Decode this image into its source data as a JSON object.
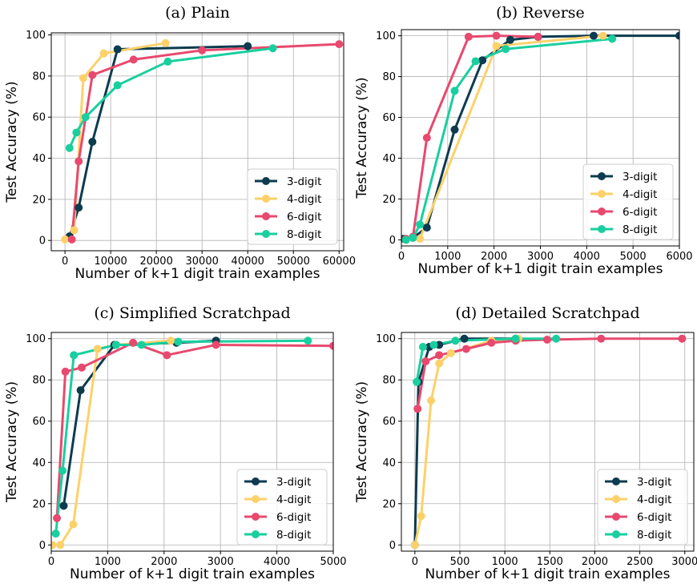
{
  "chart_data": [
    {
      "type": "line",
      "title": "(a) Plain",
      "xlabel": "Number of k+1 digit train examples",
      "ylabel": "Test Accuracy (%)",
      "xlim": [
        -3000,
        61000
      ],
      "ylim": [
        -5,
        101
      ],
      "xticks": [
        0,
        10000,
        20000,
        30000,
        40000,
        50000,
        60000
      ],
      "xtick_labels": [
        "0",
        "10000",
        "20000",
        "30000",
        "40000",
        "50000",
        "60000"
      ],
      "yticks": [
        0,
        20,
        40,
        60,
        80,
        100
      ],
      "ytick_labels": [
        "0",
        "20",
        "40",
        "60",
        "80",
        "100"
      ],
      "grid": true,
      "legend_position": "lower-right",
      "series": [
        {
          "name": "3-digit",
          "color": "#0d3b4f",
          "x": [
            1000,
            3000,
            6000,
            11500,
            40000
          ],
          "y": [
            2,
            16,
            48,
            93,
            94.5
          ]
        },
        {
          "name": "4-digit",
          "color": "#fdd16a",
          "x": [
            0,
            2000,
            4000,
            8500,
            22000
          ],
          "y": [
            0.5,
            5,
            79,
            91,
            96
          ]
        },
        {
          "name": "6-digit",
          "color": "#e8496e",
          "x": [
            1500,
            3000,
            6000,
            15000,
            30000,
            60000
          ],
          "y": [
            0.5,
            38.5,
            80.5,
            88,
            92.5,
            95.5
          ]
        },
        {
          "name": "8-digit",
          "color": "#19cf9f",
          "x": [
            1000,
            2500,
            4500,
            11500,
            22500,
            45500
          ],
          "y": [
            45,
            52.5,
            60,
            75.5,
            87,
            93.5
          ]
        }
      ]
    },
    {
      "type": "line",
      "title": "(b) Reverse",
      "xlabel": "Number of k+1 digit train examples",
      "ylabel": "Test Accuracy (%)",
      "xlim": [
        0,
        6000
      ],
      "ylim": [
        -3,
        103
      ],
      "xticks": [
        0,
        1000,
        2000,
        3000,
        4000,
        5000,
        6000
      ],
      "xtick_labels": [
        "0",
        "1000",
        "2000",
        "3000",
        "4000",
        "5000",
        "6000"
      ],
      "yticks": [
        0,
        20,
        40,
        60,
        80,
        100
      ],
      "ytick_labels": [
        "0",
        "20",
        "40",
        "60",
        "80",
        "100"
      ],
      "grid": true,
      "legend_position": "lower-right",
      "series": [
        {
          "name": "3-digit",
          "color": "#0d3b4f",
          "x": [
            50,
            250,
            550,
            1150,
            1750,
            2350,
            2950,
            4150,
            6000
          ],
          "y": [
            0.5,
            1,
            6,
            54,
            88,
            98,
            99.5,
            100,
            100
          ]
        },
        {
          "name": "4-digit",
          "color": "#fdd16a",
          "x": [
            100,
            400,
            2050,
            4350
          ],
          "y": [
            0,
            0.5,
            95,
            100
          ]
        },
        {
          "name": "6-digit",
          "color": "#e8496e",
          "x": [
            100,
            250,
            550,
            1450,
            2050,
            2950
          ],
          "y": [
            0.5,
            1.5,
            50,
            99.5,
            100,
            99.5
          ]
        },
        {
          "name": "8-digit",
          "color": "#19cf9f",
          "x": [
            100,
            250,
            400,
            1150,
            1600,
            2250,
            4550
          ],
          "y": [
            0,
            1,
            7.5,
            73,
            87.5,
            93.5,
            98.5
          ]
        }
      ]
    },
    {
      "type": "line",
      "title": "(c) Simplified Scratchpad",
      "xlabel": "Number of k+1 digit train examples",
      "ylabel": "Test Accuracy (%)",
      "xlim": [
        0,
        5000
      ],
      "ylim": [
        -3,
        103
      ],
      "xticks": [
        0,
        1000,
        2000,
        3000,
        4000,
        5000
      ],
      "xtick_labels": [
        "0",
        "1000",
        "2000",
        "3000",
        "4000",
        "5000"
      ],
      "yticks": [
        0,
        20,
        40,
        60,
        80,
        100
      ],
      "ytick_labels": [
        "0",
        "20",
        "40",
        "60",
        "80",
        "100"
      ],
      "grid": true,
      "legend_position": "lower-right",
      "series": [
        {
          "name": "3-digit",
          "color": "#0d3b4f",
          "x": [
            220,
            520,
            1120,
            2220,
            2920
          ],
          "y": [
            19,
            75,
            97,
            98,
            99
          ]
        },
        {
          "name": "4-digit",
          "color": "#fdd16a",
          "x": [
            20,
            160,
            390,
            820,
            1150,
            2120
          ],
          "y": [
            0,
            0,
            10,
            95,
            97,
            99
          ]
        },
        {
          "name": "6-digit",
          "color": "#e8496e",
          "x": [
            100,
            250,
            540,
            1450,
            2050,
            2920,
            5000
          ],
          "y": [
            13,
            84,
            86,
            98,
            92,
            97,
            96.5
          ]
        },
        {
          "name": "8-digit",
          "color": "#19cf9f",
          "x": [
            80,
            200,
            400,
            1150,
            1600,
            2250,
            4550
          ],
          "y": [
            5.5,
            36,
            92,
            97,
            97,
            98.5,
            99
          ]
        }
      ]
    },
    {
      "type": "line",
      "title": "(d) Detailed Scratchpad",
      "xlabel": "Number of k+1 digit train examples",
      "ylabel": "Test Accuracy (%)",
      "xlim": [
        -150,
        3100
      ],
      "ylim": [
        -3,
        103
      ],
      "xticks": [
        0,
        500,
        1000,
        1500,
        2000,
        2500,
        3000
      ],
      "xtick_labels": [
        "0",
        "500",
        "1000",
        "1500",
        "2000",
        "2500",
        "3000"
      ],
      "yticks": [
        0,
        20,
        40,
        60,
        80,
        100
      ],
      "ytick_labels": [
        "0",
        "20",
        "40",
        "60",
        "80",
        "100"
      ],
      "grid": true,
      "legend_position": "lower-right",
      "series": [
        {
          "name": "3-digit",
          "color": "#0d3b4f",
          "x": [
            0,
            40,
            160,
            270,
            550,
            1120
          ],
          "y": [
            0,
            79,
            96,
            97,
            100,
            100
          ]
        },
        {
          "name": "4-digit",
          "color": "#fdd16a",
          "x": [
            0,
            70,
            180,
            270,
            400,
            850,
            1150
          ],
          "y": [
            0,
            14,
            70,
            88,
            93,
            99,
            100
          ]
        },
        {
          "name": "6-digit",
          "color": "#e8496e",
          "x": [
            30,
            120,
            270,
            570,
            850,
            1120,
            1470,
            2070,
            2970
          ],
          "y": [
            66,
            89,
            92,
            95,
            98,
            99,
            99.5,
            100,
            100
          ]
        },
        {
          "name": "8-digit",
          "color": "#19cf9f",
          "x": [
            20,
            90,
            210,
            450,
            1120,
            1570
          ],
          "y": [
            79,
            96,
            97,
            99,
            100,
            100
          ]
        }
      ]
    }
  ]
}
